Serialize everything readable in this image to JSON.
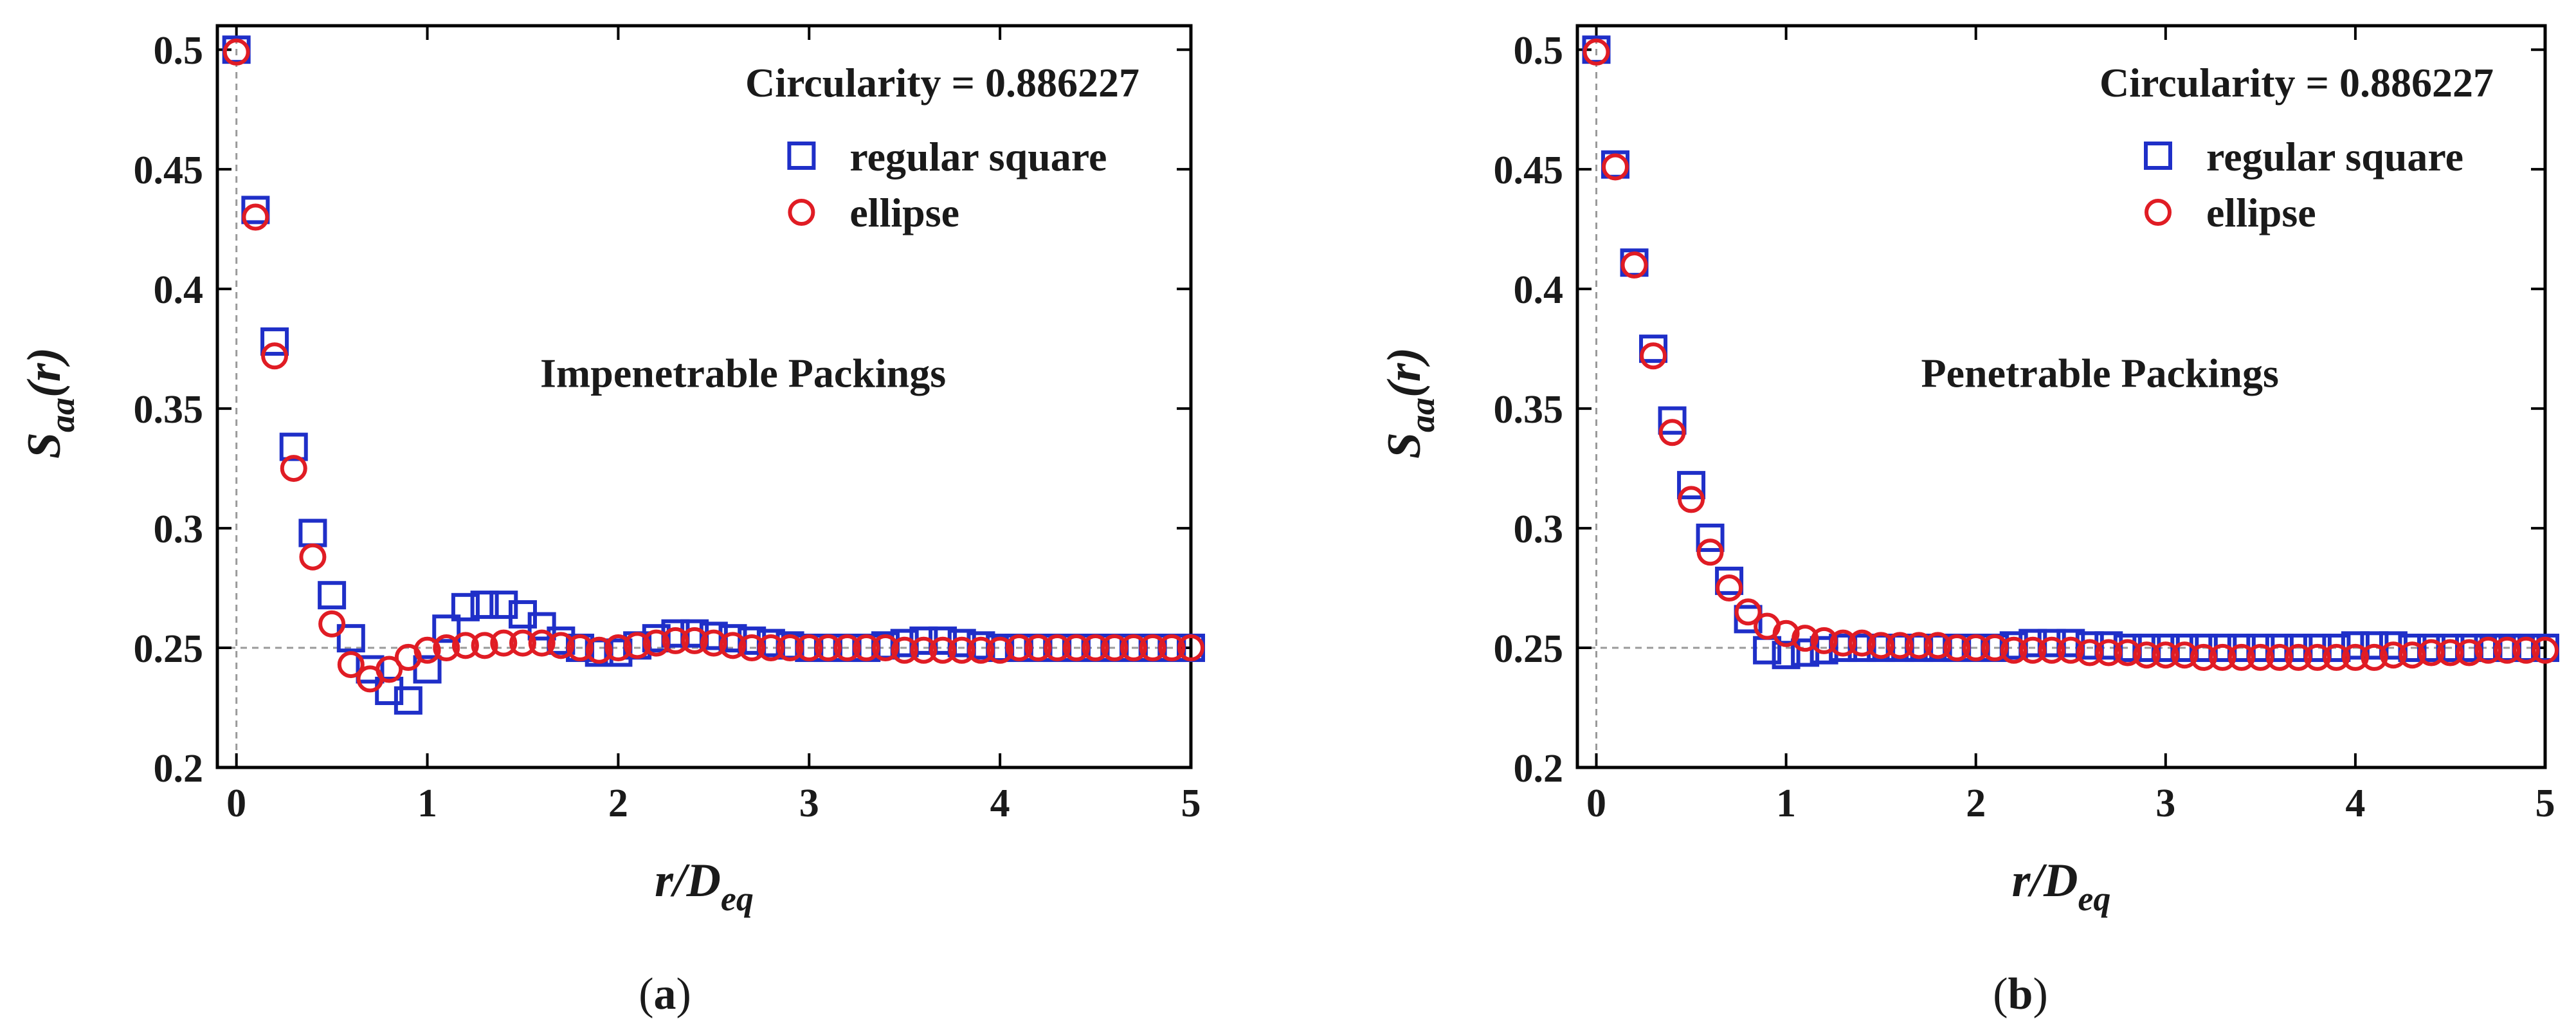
{
  "colors": {
    "square": "#1f2fc8",
    "ellipse": "#e01c24",
    "axis": "#000000",
    "ref": "#9a9a9a"
  },
  "chart_data": [
    {
      "type": "scatter",
      "panel": "a",
      "caption": "(a)",
      "caption_parts": [
        "(",
        "a",
        ")"
      ],
      "annotation": "Impenetrable Packings",
      "legend_title": "Circularity = 0.886227",
      "xlabel": "r/D",
      "xlabel_sub": "eq",
      "ylabel": "S",
      "ylabel_sub": "aa",
      "ylabel_suffix": "(r)",
      "xlim": [
        -0.1,
        5
      ],
      "ylim": [
        0.2,
        0.51
      ],
      "xticks": [
        0,
        1,
        2,
        3,
        4,
        5
      ],
      "xtick_labels": [
        "0",
        "1",
        "2",
        "3",
        "4",
        "5"
      ],
      "yticks": [
        0.2,
        0.25,
        0.3,
        0.35,
        0.4,
        0.45,
        0.5
      ],
      "ytick_labels": [
        "0.2",
        "0.25",
        "0.3",
        "0.35",
        "0.4",
        "0.45",
        "0.5"
      ],
      "reference_lines": {
        "x": 0,
        "y": 0.25
      },
      "series": [
        {
          "name": "regular square",
          "marker": "square",
          "x": [
            0,
            0.1,
            0.2,
            0.3,
            0.4,
            0.5,
            0.6,
            0.7,
            0.8,
            0.9,
            1.0,
            1.1,
            1.2,
            1.3,
            1.4,
            1.5,
            1.6,
            1.7,
            1.8,
            1.9,
            2.0,
            2.1,
            2.2,
            2.3,
            2.4,
            2.5,
            2.6,
            2.7,
            2.8,
            2.9,
            3.0,
            3.1,
            3.2,
            3.3,
            3.4,
            3.5,
            3.6,
            3.7,
            3.8,
            3.9,
            4.0,
            4.1,
            4.2,
            4.3,
            4.4,
            4.5,
            4.6,
            4.7,
            4.8,
            4.9,
            5.0
          ],
          "y": [
            0.5,
            0.433,
            0.378,
            0.334,
            0.298,
            0.272,
            0.254,
            0.241,
            0.232,
            0.228,
            0.241,
            0.258,
            0.267,
            0.268,
            0.268,
            0.264,
            0.259,
            0.253,
            0.25,
            0.248,
            0.248,
            0.251,
            0.254,
            0.256,
            0.256,
            0.255,
            0.254,
            0.253,
            0.252,
            0.251,
            0.25,
            0.25,
            0.25,
            0.25,
            0.251,
            0.252,
            0.253,
            0.253,
            0.252,
            0.251,
            0.25,
            0.25,
            0.25,
            0.25,
            0.25,
            0.25,
            0.25,
            0.25,
            0.25,
            0.25,
            0.25
          ]
        },
        {
          "name": "ellipse",
          "marker": "circle",
          "x": [
            0,
            0.1,
            0.2,
            0.3,
            0.4,
            0.5,
            0.6,
            0.7,
            0.8,
            0.9,
            1.0,
            1.1,
            1.2,
            1.3,
            1.4,
            1.5,
            1.6,
            1.7,
            1.8,
            1.9,
            2.0,
            2.1,
            2.2,
            2.3,
            2.4,
            2.5,
            2.6,
            2.7,
            2.8,
            2.9,
            3.0,
            3.1,
            3.2,
            3.3,
            3.4,
            3.5,
            3.6,
            3.7,
            3.8,
            3.9,
            4.0,
            4.1,
            4.2,
            4.3,
            4.4,
            4.5,
            4.6,
            4.7,
            4.8,
            4.9,
            5.0
          ],
          "y": [
            0.499,
            0.43,
            0.372,
            0.325,
            0.288,
            0.26,
            0.243,
            0.237,
            0.241,
            0.246,
            0.249,
            0.25,
            0.251,
            0.251,
            0.252,
            0.252,
            0.252,
            0.251,
            0.25,
            0.249,
            0.25,
            0.251,
            0.252,
            0.253,
            0.253,
            0.252,
            0.251,
            0.25,
            0.25,
            0.25,
            0.25,
            0.25,
            0.25,
            0.25,
            0.25,
            0.249,
            0.249,
            0.249,
            0.249,
            0.249,
            0.249,
            0.25,
            0.25,
            0.25,
            0.25,
            0.25,
            0.25,
            0.25,
            0.25,
            0.25,
            0.25
          ]
        }
      ]
    },
    {
      "type": "scatter",
      "panel": "b",
      "caption": "(b)",
      "caption_parts": [
        "(",
        "b",
        ")"
      ],
      "annotation": "Penetrable Packings",
      "legend_title": "Circularity = 0.886227",
      "xlabel": "r/D",
      "xlabel_sub": "eq",
      "ylabel": "S",
      "ylabel_sub": "aa",
      "ylabel_suffix": "(r)",
      "xlim": [
        -0.1,
        5
      ],
      "ylim": [
        0.2,
        0.51
      ],
      "xticks": [
        0,
        1,
        2,
        3,
        4,
        5
      ],
      "xtick_labels": [
        "0",
        "1",
        "2",
        "3",
        "4",
        "5"
      ],
      "yticks": [
        0.2,
        0.25,
        0.3,
        0.35,
        0.4,
        0.45,
        0.5
      ],
      "ytick_labels": [
        "0.2",
        "0.25",
        "0.3",
        "0.35",
        "0.4",
        "0.45",
        "0.5"
      ],
      "reference_lines": {
        "x": 0,
        "y": 0.25
      },
      "series": [
        {
          "name": "regular square",
          "marker": "square",
          "x": [
            0,
            0.1,
            0.2,
            0.3,
            0.4,
            0.5,
            0.6,
            0.7,
            0.8,
            0.9,
            1.0,
            1.1,
            1.2,
            1.3,
            1.4,
            1.5,
            1.6,
            1.7,
            1.8,
            1.9,
            2.0,
            2.1,
            2.2,
            2.3,
            2.4,
            2.5,
            2.6,
            2.7,
            2.8,
            2.9,
            3.0,
            3.1,
            3.2,
            3.3,
            3.4,
            3.5,
            3.6,
            3.7,
            3.8,
            3.9,
            4.0,
            4.1,
            4.2,
            4.3,
            4.4,
            4.5,
            4.6,
            4.7,
            4.8,
            4.9,
            5.0
          ],
          "y": [
            0.5,
            0.452,
            0.411,
            0.375,
            0.345,
            0.318,
            0.296,
            0.278,
            0.262,
            0.249,
            0.247,
            0.248,
            0.249,
            0.25,
            0.25,
            0.25,
            0.25,
            0.25,
            0.25,
            0.25,
            0.25,
            0.25,
            0.251,
            0.252,
            0.252,
            0.252,
            0.251,
            0.251,
            0.25,
            0.25,
            0.25,
            0.25,
            0.25,
            0.25,
            0.25,
            0.25,
            0.25,
            0.25,
            0.25,
            0.25,
            0.251,
            0.251,
            0.251,
            0.25,
            0.25,
            0.25,
            0.25,
            0.25,
            0.25,
            0.25,
            0.25
          ]
        },
        {
          "name": "ellipse",
          "marker": "circle",
          "x": [
            0,
            0.1,
            0.2,
            0.3,
            0.4,
            0.5,
            0.6,
            0.7,
            0.8,
            0.9,
            1.0,
            1.1,
            1.2,
            1.3,
            1.4,
            1.5,
            1.6,
            1.7,
            1.8,
            1.9,
            2.0,
            2.1,
            2.2,
            2.3,
            2.4,
            2.5,
            2.6,
            2.7,
            2.8,
            2.9,
            3.0,
            3.1,
            3.2,
            3.3,
            3.4,
            3.5,
            3.6,
            3.7,
            3.8,
            3.9,
            4.0,
            4.1,
            4.2,
            4.3,
            4.4,
            4.5,
            4.6,
            4.7,
            4.8,
            4.9,
            5.0
          ],
          "y": [
            0.499,
            0.451,
            0.41,
            0.372,
            0.34,
            0.312,
            0.29,
            0.275,
            0.265,
            0.259,
            0.256,
            0.254,
            0.253,
            0.252,
            0.252,
            0.251,
            0.251,
            0.251,
            0.251,
            0.25,
            0.25,
            0.25,
            0.249,
            0.249,
            0.249,
            0.249,
            0.248,
            0.248,
            0.248,
            0.247,
            0.247,
            0.247,
            0.246,
            0.246,
            0.246,
            0.246,
            0.246,
            0.246,
            0.246,
            0.246,
            0.246,
            0.246,
            0.247,
            0.247,
            0.248,
            0.248,
            0.248,
            0.249,
            0.249,
            0.249,
            0.249
          ]
        }
      ]
    }
  ]
}
